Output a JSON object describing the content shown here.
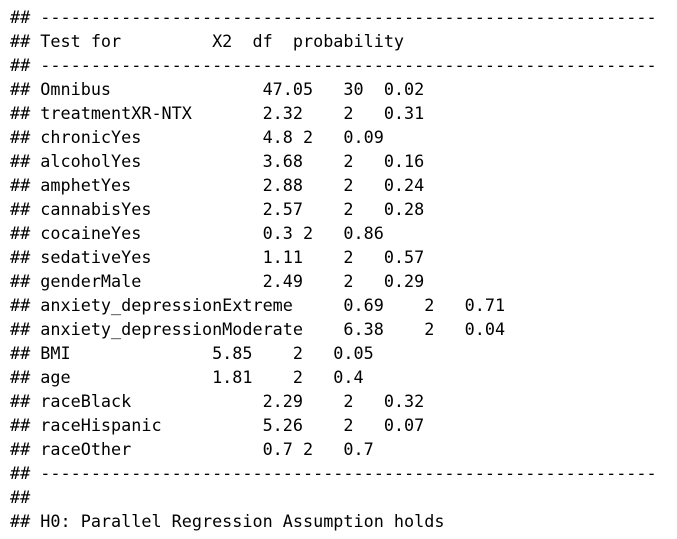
{
  "output": {
    "lines": [
      "## -------------------------------------------------------------",
      "## Test for         X2  df  probability",
      "## -------------------------------------------------------------",
      "## Omnibus               47.05   30  0.02",
      "## treatmentXR-NTX       2.32    2   0.31",
      "## chronicYes            4.8 2   0.09",
      "## alcoholYes            3.68    2   0.16",
      "## amphetYes             2.88    2   0.24",
      "## cannabisYes           2.57    2   0.28",
      "## cocaineYes            0.3 2   0.86",
      "## sedativeYes           1.11    2   0.57",
      "## genderMale            2.49    2   0.29",
      "## anxiety_depressionExtreme     0.69    2   0.71",
      "## anxiety_depressionModerate    6.38    2   0.04",
      "## BMI              5.85    2   0.05",
      "## age              1.81    2   0.4",
      "## raceBlack             2.29    2   0.32",
      "## raceHispanic          5.26    2   0.07",
      "## raceOther             0.7 2   0.7",
      "## -------------------------------------------------------------",
      "##",
      "## H0: Parallel Regression Assumption holds"
    ]
  }
}
